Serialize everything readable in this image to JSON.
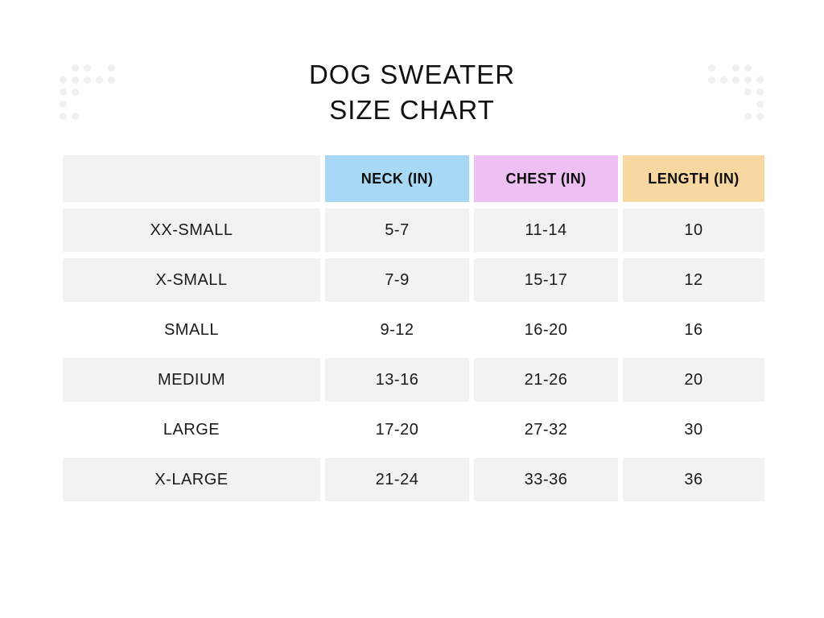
{
  "title": {
    "line1": "DOG SWEATER",
    "line2": "SIZE CHART"
  },
  "decor": {
    "dot_color": "#f0f0f0",
    "left_pattern": [
      [
        0,
        1,
        1,
        0,
        1
      ],
      [
        1,
        1,
        1,
        1,
        1
      ],
      [
        1,
        1,
        0,
        0,
        0
      ],
      [
        1,
        0,
        0,
        0,
        0
      ],
      [
        1,
        1,
        0,
        0,
        0
      ]
    ],
    "right_pattern": [
      [
        1,
        0,
        1,
        1,
        0
      ],
      [
        1,
        1,
        1,
        1,
        1
      ],
      [
        0,
        0,
        0,
        1,
        1
      ],
      [
        0,
        0,
        0,
        0,
        1
      ],
      [
        0,
        0,
        0,
        1,
        1
      ]
    ]
  },
  "chart_data": {
    "type": "table",
    "title": "DOG SWEATER SIZE CHART",
    "columns": [
      "",
      "NECK (IN)",
      "CHEST (IN)",
      "LENGTH (IN)"
    ],
    "header_colors": {
      "neck": "#a7d9f6",
      "chest": "#edbff3",
      "length": "#f9d7a0"
    },
    "row_shade_color": "#f2f2f2",
    "rows": [
      {
        "size": "XX-SMALL",
        "neck": "5-7",
        "chest": "11-14",
        "length": "10",
        "shaded": true
      },
      {
        "size": "X-SMALL",
        "neck": "7-9",
        "chest": "15-17",
        "length": "12",
        "shaded": true
      },
      {
        "size": "SMALL",
        "neck": "9-12",
        "chest": "16-20",
        "length": "16",
        "shaded": false
      },
      {
        "size": "MEDIUM",
        "neck": "13-16",
        "chest": "21-26",
        "length": "20",
        "shaded": true
      },
      {
        "size": "LARGE",
        "neck": "17-20",
        "chest": "27-32",
        "length": "30",
        "shaded": false
      },
      {
        "size": "X-LARGE",
        "neck": "21-24",
        "chest": "33-36",
        "length": "36",
        "shaded": true
      }
    ]
  }
}
